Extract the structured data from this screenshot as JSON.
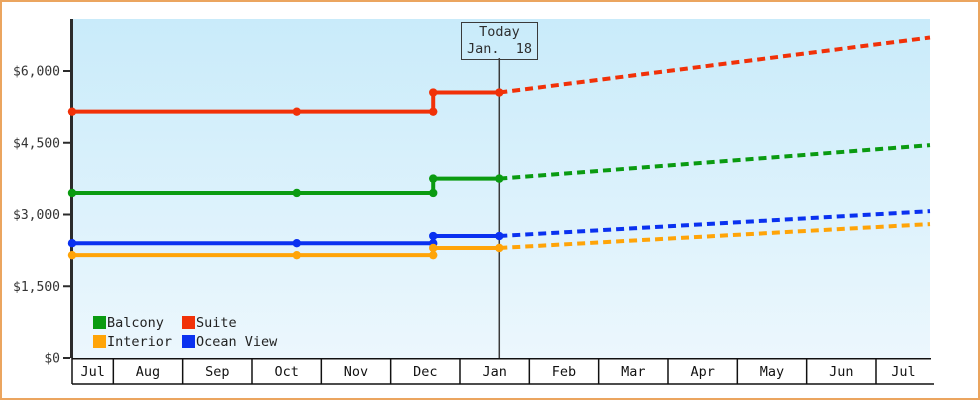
{
  "colors": {
    "frame_border": "#eba55f",
    "axis": "#2b2b2b",
    "plot_gradient_top": "#c9ebfa",
    "plot_gradient_bottom": "#ecf7fd",
    "text": "#333333",
    "today_line": "#3a3a3a"
  },
  "today_flag": {
    "line1": "Today",
    "line2": "Jan.  18"
  },
  "legend": {
    "items": [
      {
        "label": "Balcony",
        "color": "#0a9b11"
      },
      {
        "label": "Suite",
        "color": "#f13108"
      },
      {
        "label": "Interior",
        "color": "#ffa408"
      },
      {
        "label": "Ocean View",
        "color": "#0a31f0"
      }
    ]
  },
  "chart_data": {
    "type": "line",
    "title": "",
    "x_axis": {
      "months": [
        "Jul",
        "Aug",
        "Sep",
        "Oct",
        "Nov",
        "Dec",
        "Jan",
        "Feb",
        "Mar",
        "Apr",
        "May",
        "Jun",
        "Jul"
      ]
    },
    "y_axis": {
      "min": 0,
      "max": 6000,
      "ticks": [
        {
          "label": "$6,000",
          "value": 6000
        },
        {
          "label": "$4,500",
          "value": 4500
        },
        {
          "label": "$3,000",
          "value": 3000
        },
        {
          "label": "$1,500",
          "value": 1500
        },
        {
          "label": "$0",
          "value": 0
        }
      ]
    },
    "today": {
      "t": 0.498,
      "label": "Today Jan. 18"
    },
    "series": [
      {
        "name": "Suite",
        "color": "#f13108",
        "history_points": [
          {
            "t": 0.0,
            "value": 5150
          },
          {
            "t": 0.262,
            "value": 5150
          },
          {
            "t": 0.421,
            "value": 5150
          },
          {
            "t": 0.421,
            "value": 5550
          },
          {
            "t": 0.498,
            "value": 5550
          }
        ],
        "forecast_end": {
          "t": 1.0,
          "value": 6700
        }
      },
      {
        "name": "Balcony",
        "color": "#0a9b11",
        "history_points": [
          {
            "t": 0.0,
            "value": 3450
          },
          {
            "t": 0.262,
            "value": 3450
          },
          {
            "t": 0.421,
            "value": 3450
          },
          {
            "t": 0.421,
            "value": 3750
          },
          {
            "t": 0.498,
            "value": 3750
          }
        ],
        "forecast_end": {
          "t": 1.0,
          "value": 4450
        }
      },
      {
        "name": "Ocean View",
        "color": "#0a31f0",
        "history_points": [
          {
            "t": 0.0,
            "value": 2400
          },
          {
            "t": 0.262,
            "value": 2400
          },
          {
            "t": 0.421,
            "value": 2400
          },
          {
            "t": 0.421,
            "value": 2550
          },
          {
            "t": 0.498,
            "value": 2550
          }
        ],
        "forecast_end": {
          "t": 1.0,
          "value": 3070
        }
      },
      {
        "name": "Interior",
        "color": "#ffa408",
        "history_points": [
          {
            "t": 0.0,
            "value": 2150
          },
          {
            "t": 0.262,
            "value": 2150
          },
          {
            "t": 0.421,
            "value": 2150
          },
          {
            "t": 0.421,
            "value": 2300
          },
          {
            "t": 0.498,
            "value": 2300
          }
        ],
        "forecast_end": {
          "t": 1.0,
          "value": 2800
        }
      }
    ]
  }
}
